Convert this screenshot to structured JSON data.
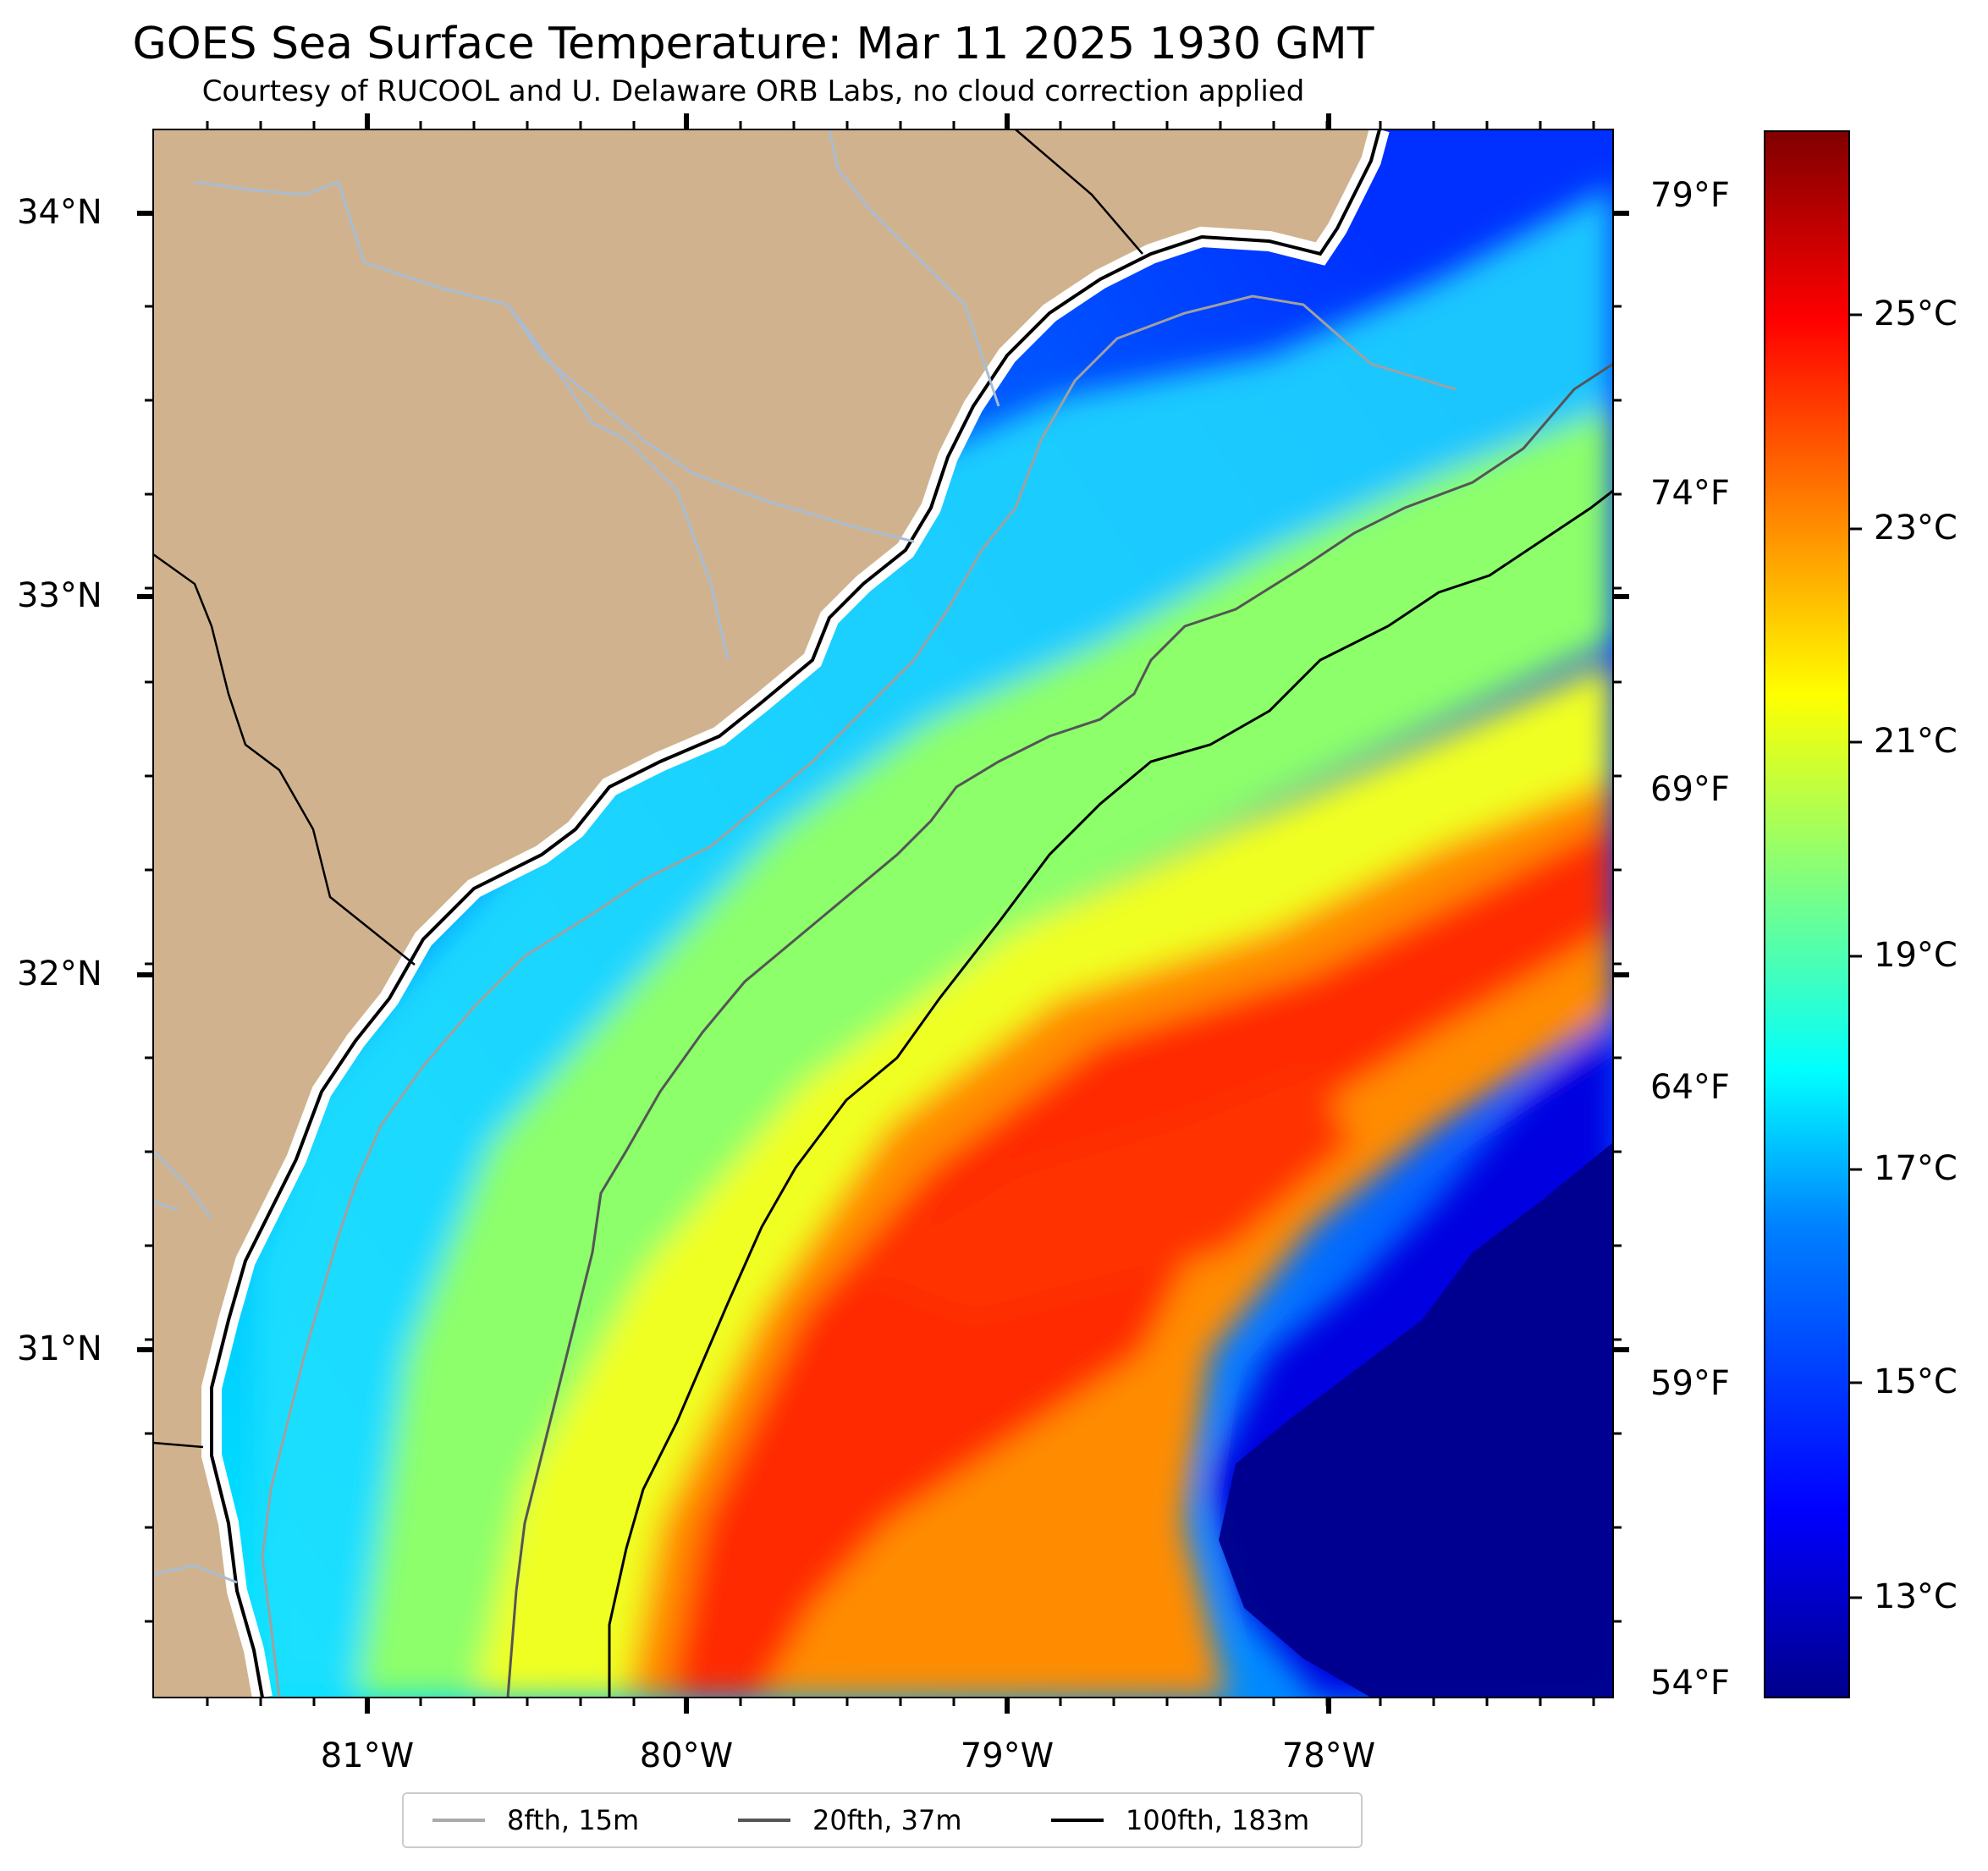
{
  "title": "GOES Sea Surface Temperature: Mar 11 2025 1930 GMT",
  "subtitle": "Courtesy of RUCOOL and U. Delaware ORB Labs, no cloud correction applied",
  "axes": {
    "lon_labels": [
      "81°W",
      "80°W",
      "79°W",
      "78°W"
    ],
    "lat_labels": [
      "34°N",
      "33°N",
      "32°N",
      "31°N"
    ],
    "fahrenheit_labels": [
      "79°F",
      "74°F",
      "69°F",
      "64°F",
      "59°F",
      "54°F"
    ]
  },
  "colorbar": {
    "labels": [
      "25°C",
      "23°C",
      "21°C",
      "19°C",
      "17°C",
      "15°C",
      "13°C"
    ],
    "colors": [
      "#800000",
      "#ff0000",
      "#ff8000",
      "#ffff00",
      "#80ff80",
      "#00ffff",
      "#0080ff",
      "#0000ff",
      "#00008b"
    ]
  },
  "legend": [
    {
      "label": "8fth, 15m",
      "color": "#aaaaaa"
    },
    {
      "label": "20fth, 37m",
      "color": "#555555"
    },
    {
      "label": "100fth, 183m",
      "color": "#000000"
    }
  ],
  "colors": {
    "land": "#d0b38e",
    "river": "#a8bcd4",
    "coastline": "#000000"
  }
}
